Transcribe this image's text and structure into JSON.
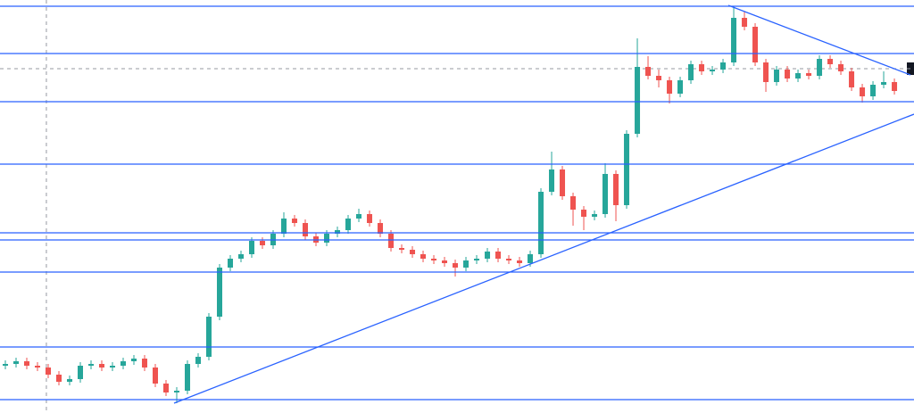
{
  "chart_data": {
    "type": "candlestick",
    "xlim": [
      -0.5,
      84.83
    ],
    "ylim": [
      0,
      463
    ],
    "up_color": "#26a69a",
    "down_color": "#ef5350",
    "line_color": "#2962ff",
    "open": [
      53,
      55,
      58,
      53,
      51,
      43,
      35,
      38,
      53,
      55,
      51,
      53,
      58,
      61,
      51,
      33,
      23,
      25,
      55,
      63,
      108,
      163,
      173,
      178,
      193,
      188,
      201,
      218,
      213,
      198,
      191,
      201,
      205,
      218,
      223,
      213,
      201,
      185,
      183,
      178,
      173,
      171,
      168,
      163,
      171,
      173,
      181,
      173,
      171,
      168,
      178,
      248,
      273,
      243,
      228,
      220,
      223,
      268,
      233,
      313,
      388,
      378,
      373,
      358,
      373,
      391,
      383,
      385,
      393,
      443,
      433,
      393,
      371,
      385,
      375,
      381,
      378,
      397,
      391,
      383,
      365,
      355,
      368,
      371
    ],
    "high": [
      59,
      62,
      62,
      57,
      55,
      47,
      42,
      57,
      59,
      59,
      57,
      62,
      65,
      65,
      55,
      37,
      29,
      59,
      67,
      112,
      167,
      177,
      182,
      197,
      197,
      205,
      225,
      222,
      217,
      202,
      205,
      209,
      222,
      229,
      227,
      217,
      205,
      189,
      187,
      182,
      177,
      175,
      172,
      175,
      177,
      185,
      185,
      177,
      175,
      182,
      252,
      293,
      277,
      247,
      232,
      227,
      280,
      272,
      317,
      420,
      400,
      385,
      377,
      377,
      395,
      395,
      389,
      397,
      456,
      450,
      437,
      397,
      389,
      389,
      385,
      385,
      401,
      401,
      395,
      387,
      369,
      372,
      383,
      375
    ],
    "low": [
      49,
      51,
      49,
      47,
      39,
      31,
      31,
      34,
      49,
      47,
      47,
      49,
      54,
      47,
      29,
      19,
      11,
      21,
      51,
      59,
      104,
      159,
      169,
      174,
      184,
      184,
      197,
      209,
      194,
      187,
      187,
      197,
      201,
      214,
      209,
      197,
      181,
      179,
      174,
      169,
      167,
      164,
      153,
      159,
      167,
      169,
      169,
      167,
      164,
      164,
      174,
      244,
      239,
      210,
      205,
      216,
      219,
      215,
      229,
      309,
      374,
      365,
      347,
      354,
      369,
      379,
      379,
      381,
      389,
      429,
      389,
      360,
      367,
      371,
      371,
      374,
      374,
      387,
      379,
      361,
      348,
      351,
      364,
      357
    ],
    "close": [
      55,
      58,
      53,
      51,
      43,
      35,
      38,
      53,
      55,
      51,
      53,
      58,
      61,
      51,
      33,
      23,
      25,
      55,
      63,
      108,
      163,
      173,
      178,
      193,
      188,
      201,
      218,
      213,
      198,
      191,
      201,
      205,
      218,
      223,
      213,
      201,
      185,
      183,
      178,
      173,
      171,
      168,
      163,
      171,
      173,
      181,
      173,
      171,
      168,
      178,
      248,
      273,
      243,
      228,
      220,
      223,
      268,
      233,
      313,
      388,
      378,
      373,
      358,
      373,
      391,
      383,
      385,
      393,
      443,
      433,
      393,
      371,
      385,
      375,
      381,
      378,
      397,
      391,
      383,
      365,
      355,
      368,
      371,
      361
    ],
    "levels": [
      456,
      403,
      349,
      279,
      202,
      194,
      158,
      74,
      15
    ],
    "trendlines": [
      {
        "x": [
          15.75,
          84.83
        ],
        "y": [
          11,
          335
        ]
      },
      {
        "x": [
          67.5,
          84.5
        ],
        "y": [
          457,
          379
        ]
      }
    ],
    "crosshair": {
      "x": 3.83,
      "y": 386
    }
  }
}
